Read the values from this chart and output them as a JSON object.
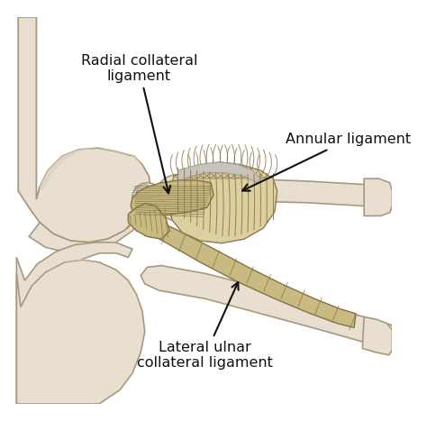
{
  "background_color": "#ffffff",
  "bone_fill": "#e8dfd0",
  "bone_edge": "#a89880",
  "bone_fill2": "#ece5d8",
  "lig_fill": "#c8ba80",
  "lig_edge": "#857245",
  "lig_fill2": "#d4c88a",
  "ann_fill": "#ddd0a0",
  "ann_edge": "#907a50",
  "gray_fill": "#d0ccc8",
  "gray_edge": "#a0a0a0",
  "labels": {
    "rcl": "Radial collateral\nligament",
    "al": "Annular ligament",
    "lucl": "Lateral ulnar\ncollateral ligament"
  },
  "label_fontsize": 11.5,
  "label_color": "#111111",
  "arrow_color": "#111111",
  "figsize": [
    4.74,
    4.67
  ],
  "dpi": 100
}
